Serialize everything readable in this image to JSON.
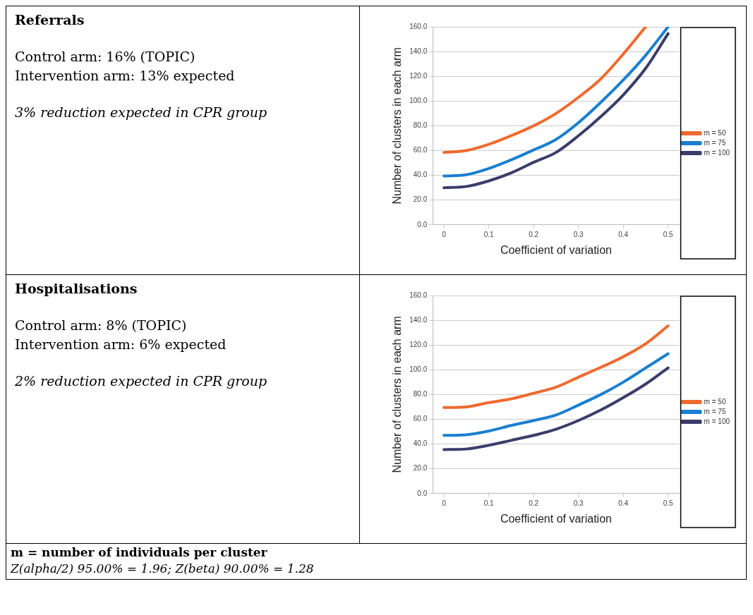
{
  "chart_data": [
    {
      "type": "other",
      "title": "Referrals",
      "annotations": [
        "Control arm: 16% (TOPIC)",
        "Intervention arm: 13% expected",
        "3% reduction expected in CPR group"
      ]
    },
    {
      "type": "line",
      "xlabel": "Coefficient of variation",
      "ylabel": "Number of clusters in each arm",
      "x": [
        0,
        0.05,
        0.1,
        0.15,
        0.2,
        0.25,
        0.3,
        0.35,
        0.4,
        0.45,
        0.5
      ],
      "xlim": [
        -0.025,
        0.525
      ],
      "xticks": [
        0,
        0.1,
        0.2,
        0.3,
        0.4,
        0.5
      ],
      "ylim": [
        0,
        160
      ],
      "yticks": [
        {
          "value": 0,
          "label": "0.0"
        },
        {
          "value": 20,
          "label": "20.0"
        },
        {
          "value": 40,
          "label": "40.0"
        },
        {
          "value": 60,
          "label": "60.0"
        },
        {
          "value": 80,
          "label": "80.0"
        },
        {
          "value": 100,
          "label": "100.0"
        },
        {
          "value": 120,
          "label": "120.0"
        },
        {
          "value": 140,
          "label": "140.0"
        },
        {
          "value": 160,
          "label": "160.0"
        }
      ],
      "grid": "y",
      "legend": "right",
      "marker": "none",
      "series": [
        {
          "name": "m = 50",
          "color": "#ef6a2e",
          "values": [
            58.5,
            60,
            65,
            72,
            80,
            90,
            103,
            118,
            138,
            160,
            null
          ]
        },
        {
          "name": "m = 75",
          "color": "#1a7fd0",
          "values": [
            39.5,
            40.5,
            45.5,
            52.5,
            60.5,
            69,
            82.5,
            99,
            117,
            137,
            160
          ]
        },
        {
          "name": "m = 100",
          "color": "#3a3d6b",
          "values": [
            30,
            31,
            35.5,
            42,
            50.5,
            58.5,
            72,
            87.5,
            105,
            126.5,
            154.5
          ]
        }
      ]
    },
    {
      "type": "other",
      "title": "Hospitalisations",
      "annotations": [
        "Control arm: 8% (TOPIC)",
        "Intervention arm: 6% expected",
        "2% reduction expected in CPR group"
      ]
    },
    {
      "type": "line",
      "xlabel": "Coefficient of variation",
      "ylabel": "Number of clusters in each arm",
      "x": [
        0,
        0.05,
        0.1,
        0.15,
        0.2,
        0.25,
        0.3,
        0.35,
        0.4,
        0.45,
        0.5
      ],
      "xlim": [
        -0.025,
        0.525
      ],
      "xticks": [
        0,
        0.1,
        0.2,
        0.3,
        0.4,
        0.5
      ],
      "ylim": [
        0,
        160
      ],
      "yticks": [
        {
          "value": 0,
          "label": "0.0"
        },
        {
          "value": 20,
          "label": "20.0"
        },
        {
          "value": 40,
          "label": "40.0"
        },
        {
          "value": 60,
          "label": "60.0"
        },
        {
          "value": 80,
          "label": "80.0"
        },
        {
          "value": 100,
          "label": "100.0"
        },
        {
          "value": 120,
          "label": "120.0"
        },
        {
          "value": 140,
          "label": "140.0"
        },
        {
          "value": 160,
          "label": "160.0"
        }
      ],
      "grid": "y",
      "legend": "right",
      "marker": "none",
      "series": [
        {
          "name": "m = 50",
          "color": "#ef6a2e",
          "values": [
            69.5,
            70,
            73.5,
            76.5,
            81,
            86,
            94,
            102,
            110.5,
            121,
            135.5
          ]
        },
        {
          "name": "m = 75",
          "color": "#1a7fd0",
          "values": [
            47,
            47.5,
            50.5,
            55,
            59,
            63.5,
            71.5,
            80,
            90,
            101.5,
            113
          ]
        },
        {
          "name": "m = 100",
          "color": "#3a3d6b",
          "values": [
            35.5,
            36,
            39,
            43,
            47,
            52,
            59,
            67.5,
            77.5,
            88.5,
            101.5
          ]
        }
      ]
    },
    {
      "type": "other",
      "title": "m = number of individuals per cluster",
      "annotations": [
        "Z(alpha/2) 95.00% = 1.96; Z(beta) 90.00% = 1.28"
      ]
    }
  ]
}
